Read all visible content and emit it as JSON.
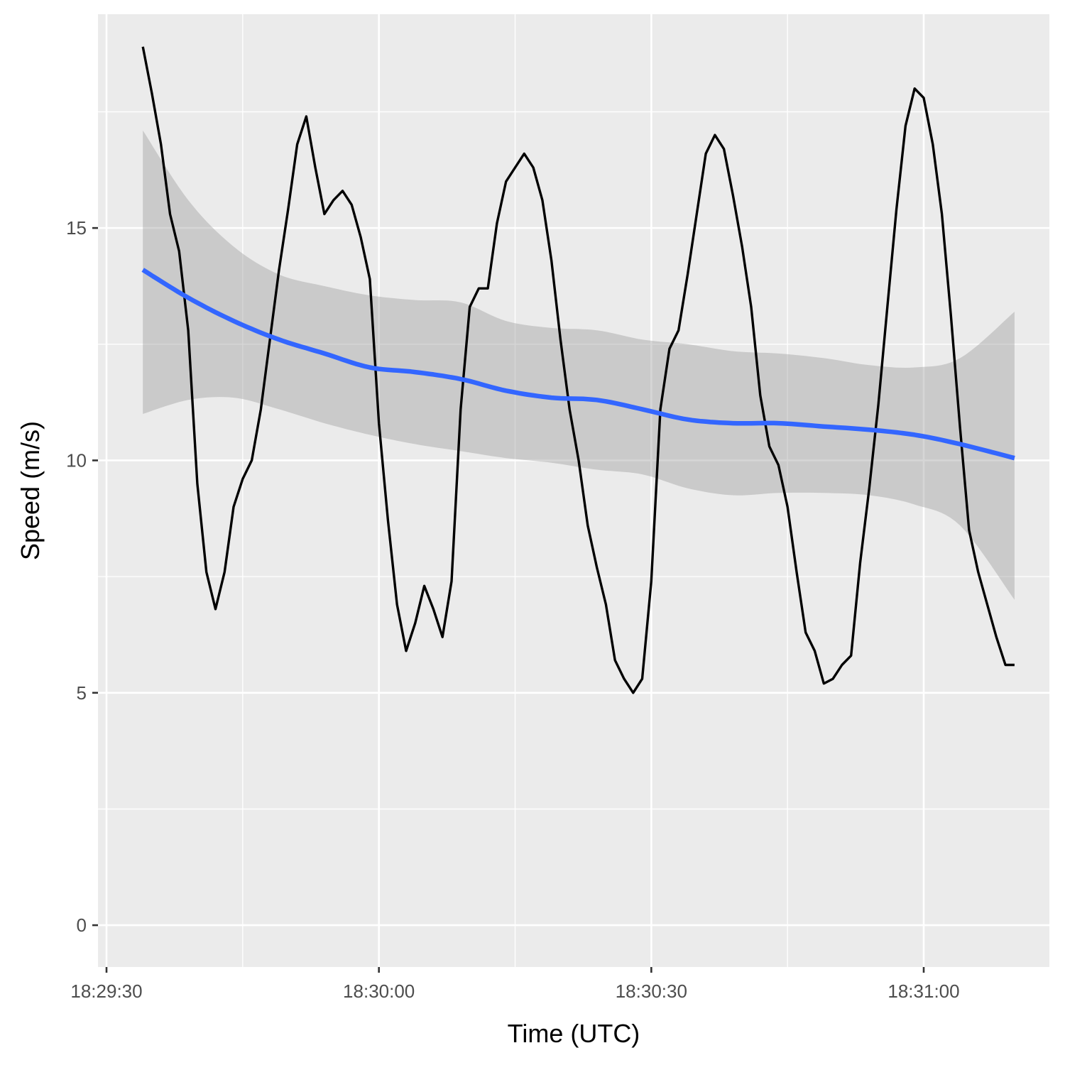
{
  "chart_data": {
    "type": "line",
    "title": "",
    "xlabel": "Time (UTC)",
    "ylabel": "Speed (m/s)",
    "x_ticks": [
      "18:29:30",
      "18:30:00",
      "18:30:30",
      "18:31:00"
    ],
    "y_ticks": [
      "0",
      "5",
      "10",
      "15"
    ],
    "x_domain": [
      "18:29:30",
      "18:31:13"
    ],
    "ylim": [
      -0.9,
      19.6
    ],
    "grid": true,
    "colors": {
      "panel": "#ebebeb",
      "grid": "#ffffff",
      "line": "#000000",
      "smooth": "#3366ff",
      "band": "#999999"
    },
    "series": [
      {
        "kind": "line",
        "x": [
          "18:29:34",
          "18:29:35",
          "18:29:36",
          "18:29:37",
          "18:29:38",
          "18:29:39",
          "18:29:40",
          "18:29:41",
          "18:29:42",
          "18:29:43",
          "18:29:44",
          "18:29:45",
          "18:29:46",
          "18:29:47",
          "18:29:48",
          "18:29:49",
          "18:29:50",
          "18:29:51",
          "18:29:52",
          "18:29:53",
          "18:29:54",
          "18:29:55",
          "18:29:56",
          "18:29:57",
          "18:29:58",
          "18:29:59",
          "18:30:00",
          "18:30:01",
          "18:30:02",
          "18:30:03",
          "18:30:04",
          "18:30:05",
          "18:30:06",
          "18:30:07",
          "18:30:08",
          "18:30:09",
          "18:30:10",
          "18:30:11",
          "18:30:12",
          "18:30:13",
          "18:30:14",
          "18:30:15",
          "18:30:16",
          "18:30:17",
          "18:30:18",
          "18:30:19",
          "18:30:20",
          "18:30:21",
          "18:30:22",
          "18:30:23",
          "18:30:24",
          "18:30:25",
          "18:30:26",
          "18:30:27",
          "18:30:28",
          "18:30:29",
          "18:30:30",
          "18:30:31",
          "18:30:32",
          "18:30:33",
          "18:30:34",
          "18:30:35",
          "18:30:36",
          "18:30:37",
          "18:30:38",
          "18:30:39",
          "18:30:40",
          "18:30:41",
          "18:30:42",
          "18:30:43",
          "18:30:44",
          "18:30:45",
          "18:30:46",
          "18:30:47",
          "18:30:48",
          "18:30:49",
          "18:30:50",
          "18:30:51",
          "18:30:52",
          "18:30:53",
          "18:30:54",
          "18:30:55",
          "18:30:56",
          "18:30:57",
          "18:30:58",
          "18:30:59",
          "18:31:00",
          "18:31:01",
          "18:31:02",
          "18:31:03",
          "18:31:04",
          "18:31:05",
          "18:31:06",
          "18:31:07",
          "18:31:08",
          "18:31:09",
          "18:31:10"
        ],
        "values": [
          18.9,
          17.9,
          16.8,
          15.3,
          14.5,
          12.8,
          9.5,
          7.6,
          6.8,
          7.6,
          9.0,
          9.6,
          10.0,
          11.1,
          12.6,
          14.1,
          15.4,
          16.8,
          17.4,
          16.3,
          15.3,
          15.6,
          15.8,
          15.5,
          14.8,
          13.9,
          10.8,
          8.7,
          6.9,
          5.9,
          6.5,
          7.3,
          6.8,
          6.2,
          7.4,
          11.1,
          13.3,
          13.7,
          13.7,
          15.1,
          16.0,
          16.3,
          16.6,
          16.3,
          15.6,
          14.3,
          12.6,
          11.1,
          10.0,
          8.6,
          7.7,
          6.9,
          5.7,
          5.3,
          5.0,
          5.3,
          7.4,
          11.1,
          12.4,
          12.8,
          14.0,
          15.3,
          16.6,
          17.0,
          16.7,
          15.7,
          14.6,
          13.3,
          11.4,
          10.3,
          9.9,
          9.0,
          7.6,
          6.3,
          5.9,
          5.2,
          5.3,
          5.6,
          5.8,
          7.8,
          9.4,
          11.2,
          13.3,
          15.4,
          17.2,
          18.0,
          17.8,
          16.8,
          15.3,
          13.1,
          10.7,
          8.5,
          7.6,
          6.9,
          6.2,
          5.6,
          5.6
        ]
      },
      {
        "kind": "smooth",
        "x": [
          "18:29:34",
          "18:29:39",
          "18:29:44",
          "18:29:49",
          "18:29:54",
          "18:29:59",
          "18:30:04",
          "18:30:09",
          "18:30:14",
          "18:30:19",
          "18:30:24",
          "18:30:29",
          "18:30:34",
          "18:30:39",
          "18:30:44",
          "18:30:49",
          "18:30:54",
          "18:30:59",
          "18:31:04",
          "18:31:10"
        ],
        "values": [
          14.1,
          13.5,
          13.0,
          12.6,
          12.3,
          12.0,
          11.9,
          11.75,
          11.5,
          11.35,
          11.3,
          11.1,
          10.88,
          10.8,
          10.8,
          10.73,
          10.66,
          10.55,
          10.35,
          10.05
        ],
        "lower": [
          11.0,
          11.3,
          11.35,
          11.1,
          10.8,
          10.55,
          10.35,
          10.2,
          10.05,
          9.95,
          9.8,
          9.7,
          9.4,
          9.25,
          9.3,
          9.3,
          9.25,
          9.05,
          8.6,
          7.0
        ],
        "upper": [
          17.1,
          15.6,
          14.6,
          14.0,
          13.75,
          13.55,
          13.45,
          13.4,
          13.0,
          12.85,
          12.8,
          12.6,
          12.5,
          12.35,
          12.3,
          12.2,
          12.05,
          12.0,
          12.2,
          13.2
        ]
      }
    ]
  }
}
